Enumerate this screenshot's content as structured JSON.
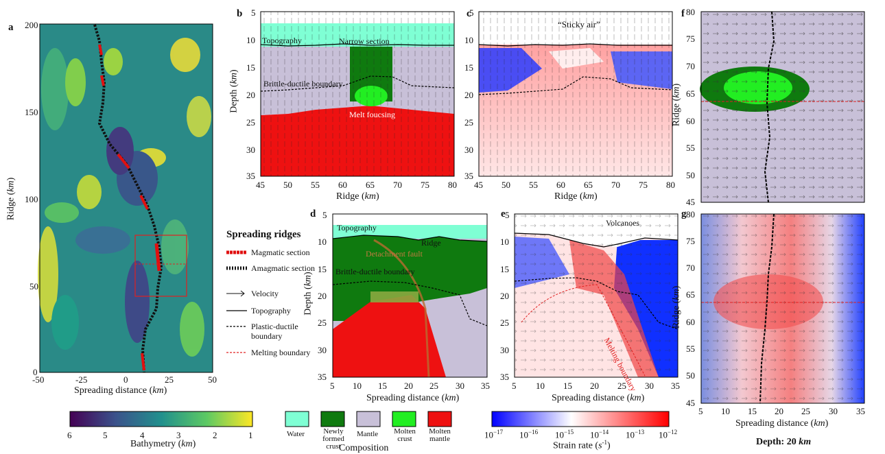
{
  "panels": {
    "a": {
      "label": "a",
      "xlabel": "Spreading distance (",
      "xunit": "km",
      "xlabel_end": ")",
      "ylabel": "Ridge (",
      "yunit": "km",
      "ylabel_end": ")",
      "xticks": [
        "-50",
        "-25",
        "0",
        "25",
        "50"
      ],
      "yticks": [
        "0",
        "50",
        "100",
        "150",
        "200"
      ]
    },
    "b": {
      "label": "b",
      "xlabel": "Ridge (",
      "xunit": "km",
      "xlabel_end": ")",
      "ylabel": "Depth (",
      "yunit": "km",
      "ylabel_end": ")",
      "xticks": [
        "45",
        "50",
        "55",
        "60",
        "65",
        "70",
        "75",
        "80"
      ],
      "yticks": [
        "5",
        "10",
        "15",
        "20",
        "25",
        "30",
        "35"
      ],
      "annotations": [
        "Topography",
        "Narrow section",
        "Brittle-ductile boundary",
        "Melt foucsing"
      ]
    },
    "c": {
      "label": "c",
      "xlabel": "Ridge (",
      "xunit": "km",
      "xlabel_end": ")",
      "xticks": [
        "45",
        "50",
        "55",
        "60",
        "65",
        "70",
        "75",
        "80"
      ],
      "yticks": [
        "5",
        "10",
        "15",
        "20",
        "25",
        "30",
        "35"
      ],
      "annotations": [
        "“Sticky air”"
      ]
    },
    "d": {
      "label": "d",
      "xlabel": "Spreading distance (",
      "xunit": "km",
      "xlabel_end": ")",
      "ylabel": "Depth (",
      "yunit": "km",
      "ylabel_end": ")",
      "xticks": [
        "5",
        "10",
        "15",
        "20",
        "25",
        "30",
        "35"
      ],
      "yticks": [
        "5",
        "10",
        "15",
        "20",
        "25",
        "30",
        "35"
      ],
      "annotations": [
        "Topography",
        "Ridge",
        "Detachment fault",
        "Brittle-ductile boundary"
      ]
    },
    "e": {
      "label": "e",
      "xlabel": "Spreading distance (",
      "xunit": "km",
      "xlabel_end": ")",
      "xticks": [
        "5",
        "10",
        "15",
        "20",
        "25",
        "30",
        "35"
      ],
      "yticks": [
        "5",
        "10",
        "15",
        "20",
        "25",
        "30",
        "35"
      ],
      "annotations": [
        "Volcanoes",
        "Melting boundary"
      ]
    },
    "f": {
      "label": "f",
      "ylabel": "Ridge (",
      "yunit": "km",
      "ylabel_end": ")",
      "yticks": [
        "45",
        "50",
        "55",
        "60",
        "65",
        "70",
        "75",
        "80"
      ]
    },
    "g": {
      "label": "g",
      "xlabel": "Spreading distance (",
      "xunit": "km",
      "xlabel_end": ")",
      "ylabel": "Ridge (",
      "yunit": "km",
      "ylabel_end": ")",
      "xticks": [
        "5",
        "10",
        "15",
        "20",
        "25",
        "30",
        "35"
      ],
      "yticks": [
        "45",
        "50",
        "55",
        "60",
        "65",
        "70",
        "75",
        "80"
      ],
      "caption": "Depth: 20 ",
      "caption_unit": "km"
    }
  },
  "legend": {
    "title": "Spreading ridges",
    "items": [
      "Magmatic section",
      "Amagmatic section",
      "Velocity",
      "Topography",
      "Plastic-ductile boundary",
      "Melting boundary"
    ]
  },
  "bathymetry_bar": {
    "ticks": [
      "6",
      "5",
      "4",
      "3",
      "2",
      "1"
    ],
    "label": "Bathymetry (",
    "unit": "km",
    "label_end": ")"
  },
  "composition_bar": {
    "items": [
      "Water",
      "Newly formed crust",
      "Mantle",
      "Molten crust",
      "Molten mantle"
    ],
    "colors": [
      "#7fffd4",
      "#0f7a0f",
      "#c8c0d8",
      "#22ee22",
      "#ee1111"
    ],
    "label": "Composition"
  },
  "strain_bar": {
    "ticks": [
      "17",
      "16",
      "15",
      "14",
      "13",
      "12"
    ],
    "base": "10",
    "label": "Strain rate (",
    "unit": "s",
    "exp": "-1",
    "label_end": ")"
  }
}
